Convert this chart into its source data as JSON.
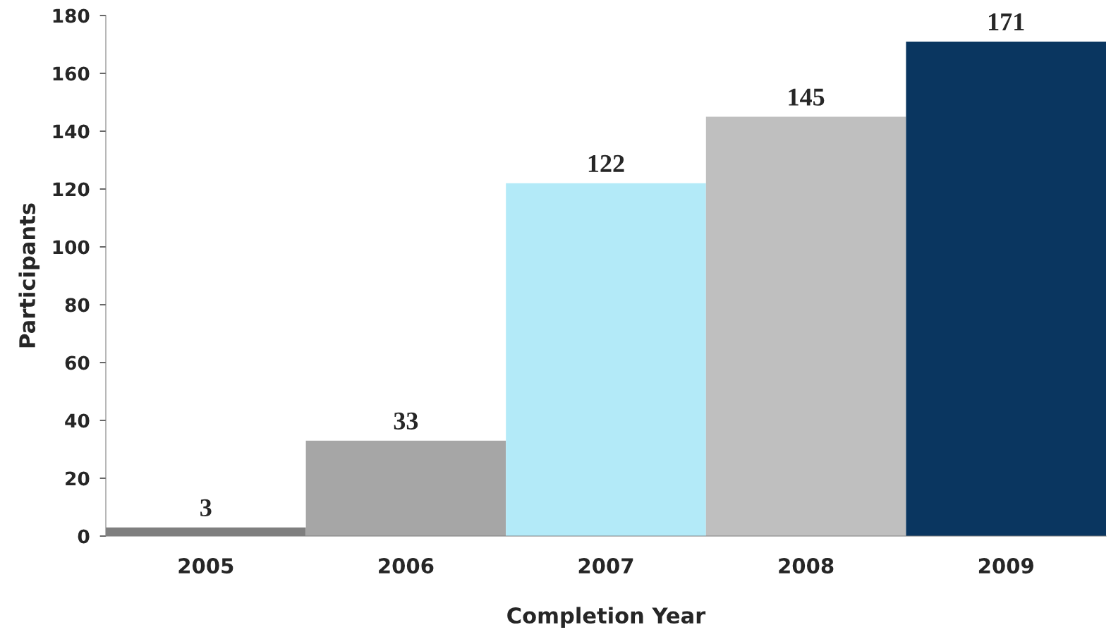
{
  "chart_data": {
    "type": "bar",
    "xlabel": "Completion Year",
    "ylabel": "Participants",
    "categories": [
      "2005",
      "2006",
      "2007",
      "2008",
      "2009"
    ],
    "values": [
      3,
      33,
      122,
      145,
      171
    ],
    "colors": [
      "#7f7f7f",
      "#a6a6a6",
      "#b3eaf8",
      "#bfbfbf",
      "#0a3660"
    ],
    "ylim": [
      0,
      180
    ],
    "yticks": [
      0,
      20,
      40,
      60,
      80,
      100,
      120,
      140,
      160,
      180
    ],
    "data_labels": true,
    "grid": false,
    "legend": false
  }
}
